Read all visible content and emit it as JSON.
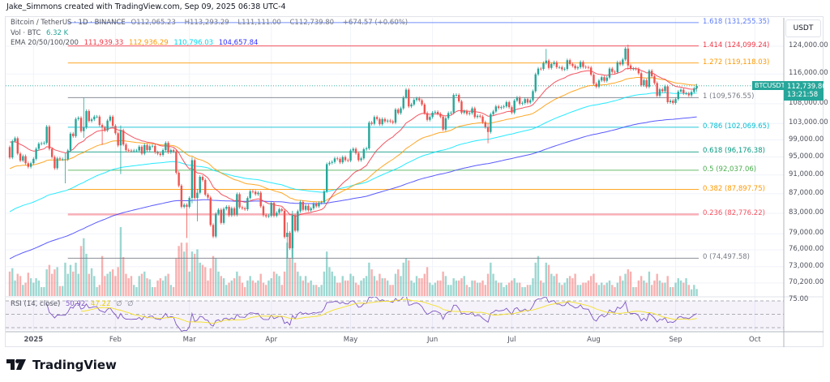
{
  "credit": "Jake_Simmons created with TradingView.com, Sep 09, 2025 06:38 UTC-4",
  "legend": {
    "symbol": "Bitcoin / TetherUS · 1D · BINANCE",
    "open_label": "O",
    "open": "112,065.23",
    "high_label": "H",
    "high": "113,293.29",
    "low_label": "L",
    "low": "111,111.00",
    "close_label": "C",
    "close": "112,739.80",
    "change": "+674.57 (+0.60%)",
    "vol_label": "Vol · BTC",
    "vol": "6.32 K",
    "ema_label": "EMA 20/50/100/200",
    "ema20": "111,939.33",
    "ema50": "112,936.29",
    "ema100": "110,796.03",
    "ema200": "104,657.84",
    "rsi_label": "RSI (14, close)",
    "rsi": "50.92",
    "rsi_ma": "47.22",
    "rsi_extra1": "∅",
    "rsi_extra2": "∅"
  },
  "price_axis": {
    "currency": "USDT",
    "ticks": [
      "124,000.00",
      "116,000.00",
      "108,000.00",
      "103,000.00",
      "99,000.00",
      "95,000.00",
      "91,000.00",
      "87,000.00",
      "83,000.00",
      "79,000.00",
      "76,000.00",
      "73,000.00",
      "70,200.00"
    ],
    "rsi_tick": "75.00"
  },
  "current": {
    "symbol": "BTCUSDT",
    "price": "112,739.80",
    "countdown": "13:21:58"
  },
  "time_axis": [
    "2025",
    "Feb",
    "Mar",
    "Apr",
    "May",
    "Jun",
    "Jul",
    "Aug",
    "Sep",
    "Oct"
  ],
  "fib_levels": [
    {
      "label": "1.618 (131,255.35)",
      "level": 1.618,
      "price": 131255.35,
      "color": "#5c7cfa"
    },
    {
      "label": "1.414 (124,099.24)",
      "level": 1.414,
      "price": 124099.24,
      "color": "#f23645"
    },
    {
      "label": "1.272 (119,118.03)",
      "level": 1.272,
      "price": 119118.03,
      "color": "#ff9800"
    },
    {
      "label": "1 (109,576.55)",
      "level": 1,
      "price": 109576.55,
      "color": "#787b86"
    },
    {
      "label": "0.786 (102,069.65)",
      "level": 0.786,
      "price": 102069.65,
      "color": "#00bcd4"
    },
    {
      "label": "0.618 (96,176.38)",
      "level": 0.618,
      "price": 96176.38,
      "color": "#089981"
    },
    {
      "label": "0.5 (92,037.06)",
      "level": 0.5,
      "price": 92037.06,
      "color": "#4caf50"
    },
    {
      "label": "0.382 (87,897.75)",
      "level": 0.382,
      "price": 87897.75,
      "color": "#ff9800"
    },
    {
      "label": "0.236 (82,776.22)",
      "level": 0.236,
      "price": 82776.22,
      "color": "#f7525f"
    },
    {
      "label": "0 (74,497.58)",
      "level": 0,
      "price": 74497.58,
      "color": "#787b86"
    }
  ],
  "logo": {
    "text": "TradingView"
  },
  "chart_data": {
    "type": "candlestick",
    "title": "Bitcoin / TetherUS · 1D · BINANCE",
    "scale": "log",
    "ylim": [
      70200,
      131255
    ],
    "grid": true,
    "start_date": "2024-12-23",
    "end_date": "2025-09-09",
    "colors": {
      "up": "#26a69a",
      "down": "#ef5350",
      "ema20": "#f23645",
      "ema50": "#ff9800",
      "ema100": "#00e5ff",
      "ema200": "#3d3dff",
      "rsi": "#7e57c2",
      "rsi_ma": "#f5e025"
    },
    "first_open": 97300,
    "close": [
      94900,
      98700,
      99400,
      95800,
      94200,
      95200,
      93600,
      92800,
      93600,
      94600,
      96900,
      98100,
      98200,
      98300,
      102200,
      96900,
      95000,
      92500,
      94700,
      94500,
      94500,
      94500,
      96500,
      100500,
      99900,
      104100,
      104400,
      101100,
      102000,
      106100,
      103600,
      104000,
      104700,
      104700,
      102600,
      102000,
      101300,
      103700,
      104700,
      102400,
      100600,
      97700,
      101300,
      97900,
      96600,
      96500,
      96400,
      96500,
      96500,
      97400,
      95800,
      97800,
      96600,
      97500,
      97600,
      96100,
      95800,
      95500,
      96600,
      98300,
      96100,
      96600,
      96300,
      91500,
      88700,
      84300,
      84700,
      84300,
      86100,
      94300,
      86100,
      87200,
      90600,
      89900,
      86800,
      86200,
      80700,
      78500,
      82900,
      83700,
      81100,
      83900,
      84300,
      82600,
      84000,
      82700,
      86900,
      84200,
      84000,
      83800,
      86100,
      87500,
      87400,
      86900,
      87200,
      84400,
      82600,
      82400,
      82500,
      85100,
      82500,
      83100,
      83800,
      83500,
      78400,
      79200,
      76300,
      82600,
      79600,
      83400,
      85300,
      83700,
      84500,
      83600,
      84000,
      84900,
      84400,
      85100,
      85200,
      87500,
      93400,
      93700,
      93900,
      94700,
      94600,
      93800,
      95000,
      94300,
      94200,
      96500,
      96900,
      95900,
      94300,
      94700,
      96800,
      97000,
      103200,
      102900,
      104600,
      104100,
      102800,
      104100,
      103500,
      103700,
      103500,
      103200,
      106500,
      105600,
      106800,
      109600,
      111700,
      107300,
      107800,
      109000,
      109400,
      108900,
      107800,
      105600,
      103900,
      104600,
      105700,
      105900,
      105400,
      104700,
      101500,
      104300,
      105600,
      105700,
      110300,
      110300,
      108600,
      105700,
      106100,
      105400,
      105600,
      106800,
      104600,
      104900,
      104700,
      103300,
      102100,
      100900,
      105300,
      106000,
      107300,
      106900,
      107100,
      107300,
      108400,
      107100,
      105700,
      108800,
      109600,
      108000,
      108200,
      109200,
      108300,
      108900,
      111300,
      115900,
      117500,
      117400,
      119100,
      119800,
      117700,
      118800,
      119300,
      117900,
      117900,
      117300,
      117400,
      119900,
      118800,
      118300,
      117600,
      117900,
      119400,
      118000,
      117900,
      117800,
      115800,
      113300,
      112500,
      114200,
      115100,
      114100,
      115000,
      117500,
      116600,
      116500,
      119300,
      118700,
      120100,
      123300,
      118400,
      117400,
      117500,
      117400,
      116200,
      112900,
      114300,
      112500,
      116900,
      115400,
      113500,
      110100,
      111800,
      111300,
      112600,
      108400,
      108800,
      108200,
      109200,
      111200,
      111700,
      110700,
      110700,
      110200,
      111100,
      112065.23,
      112739.8
    ],
    "wicks": [
      {
        "date": "2025-01-13",
        "high": 95900,
        "low": 89200
      },
      {
        "date": "2025-01-20",
        "high": 109600,
        "low": 99500
      },
      {
        "date": "2025-01-27",
        "high": 102500,
        "low": 97800
      },
      {
        "date": "2025-02-03",
        "high": 102500,
        "low": 91200
      },
      {
        "date": "2025-02-28",
        "high": 85000,
        "low": 78200
      },
      {
        "date": "2025-03-02",
        "high": 95000,
        "low": 85000
      },
      {
        "date": "2025-03-04",
        "high": 88000,
        "low": 81400
      },
      {
        "date": "2025-04-07",
        "high": 81200,
        "low": 74500
      },
      {
        "date": "2025-04-09",
        "high": 83500,
        "low": 74600
      },
      {
        "date": "2025-06-22",
        "high": 103000,
        "low": 98200
      },
      {
        "date": "2025-07-14",
        "high": 123200,
        "low": 119100
      },
      {
        "date": "2025-08-14",
        "high": 124500,
        "low": 117200
      },
      {
        "date": "2025-09-09",
        "high": 113293.29,
        "low": 111111.0
      }
    ],
    "volume_k_btc": [
      22,
      25,
      14,
      20,
      18,
      10,
      12,
      21,
      16,
      12,
      16,
      14,
      8,
      8,
      24,
      28,
      20,
      24,
      26,
      9,
      9,
      30,
      20,
      28,
      22,
      30,
      20,
      45,
      52,
      38,
      20,
      25,
      18,
      8,
      10,
      36,
      18,
      20,
      22,
      24,
      18,
      26,
      62,
      35,
      20,
      16,
      18,
      10,
      8,
      18,
      20,
      22,
      16,
      15,
      8,
      8,
      14,
      16,
      14,
      18,
      20,
      10,
      8,
      34,
      45,
      48,
      40,
      48,
      22,
      40,
      38,
      42,
      30,
      28,
      26,
      14,
      25,
      36,
      34,
      22,
      18,
      16,
      10,
      12,
      14,
      16,
      22,
      18,
      12,
      8,
      14,
      18,
      14,
      12,
      14,
      20,
      12,
      10,
      14,
      16,
      22,
      20,
      18,
      10,
      22,
      48,
      34,
      55,
      30,
      22,
      18,
      14,
      18,
      12,
      14,
      10,
      10,
      8,
      10,
      22,
      40,
      26,
      22,
      18,
      12,
      12,
      18,
      14,
      14,
      20,
      18,
      12,
      10,
      14,
      16,
      18,
      30,
      24,
      18,
      14,
      20,
      16,
      16,
      14,
      10,
      10,
      20,
      24,
      18,
      30,
      34,
      32,
      14,
      12,
      18,
      16,
      16,
      20,
      26,
      12,
      10,
      12,
      14,
      14,
      22,
      18,
      10,
      10,
      16,
      14,
      14,
      16,
      18,
      10,
      8,
      14,
      14,
      12,
      12,
      14,
      10,
      20,
      30,
      20,
      14,
      12,
      12,
      8,
      10,
      12,
      14,
      16,
      12,
      12,
      8,
      8,
      10,
      10,
      16,
      30,
      36,
      14,
      12,
      30,
      28,
      20,
      18,
      20,
      12,
      10,
      12,
      16,
      18,
      16,
      20,
      10,
      10,
      12,
      12,
      14,
      18,
      20,
      12,
      10,
      12,
      10,
      12,
      14,
      10,
      8,
      12,
      18,
      14,
      20,
      24,
      22,
      8,
      8,
      14,
      18,
      14,
      12,
      22,
      10,
      14,
      20,
      14,
      12,
      12,
      18,
      8,
      8,
      12,
      16,
      14,
      12,
      16,
      10,
      6,
      10,
      6.32
    ],
    "ema_start": {
      "ema20": 98500,
      "ema50": 92400,
      "ema100": 83300,
      "ema200": 74400
    },
    "rsi_levels": [
      70,
      50,
      30
    ],
    "fib_start_date": "2025-01-14"
  }
}
